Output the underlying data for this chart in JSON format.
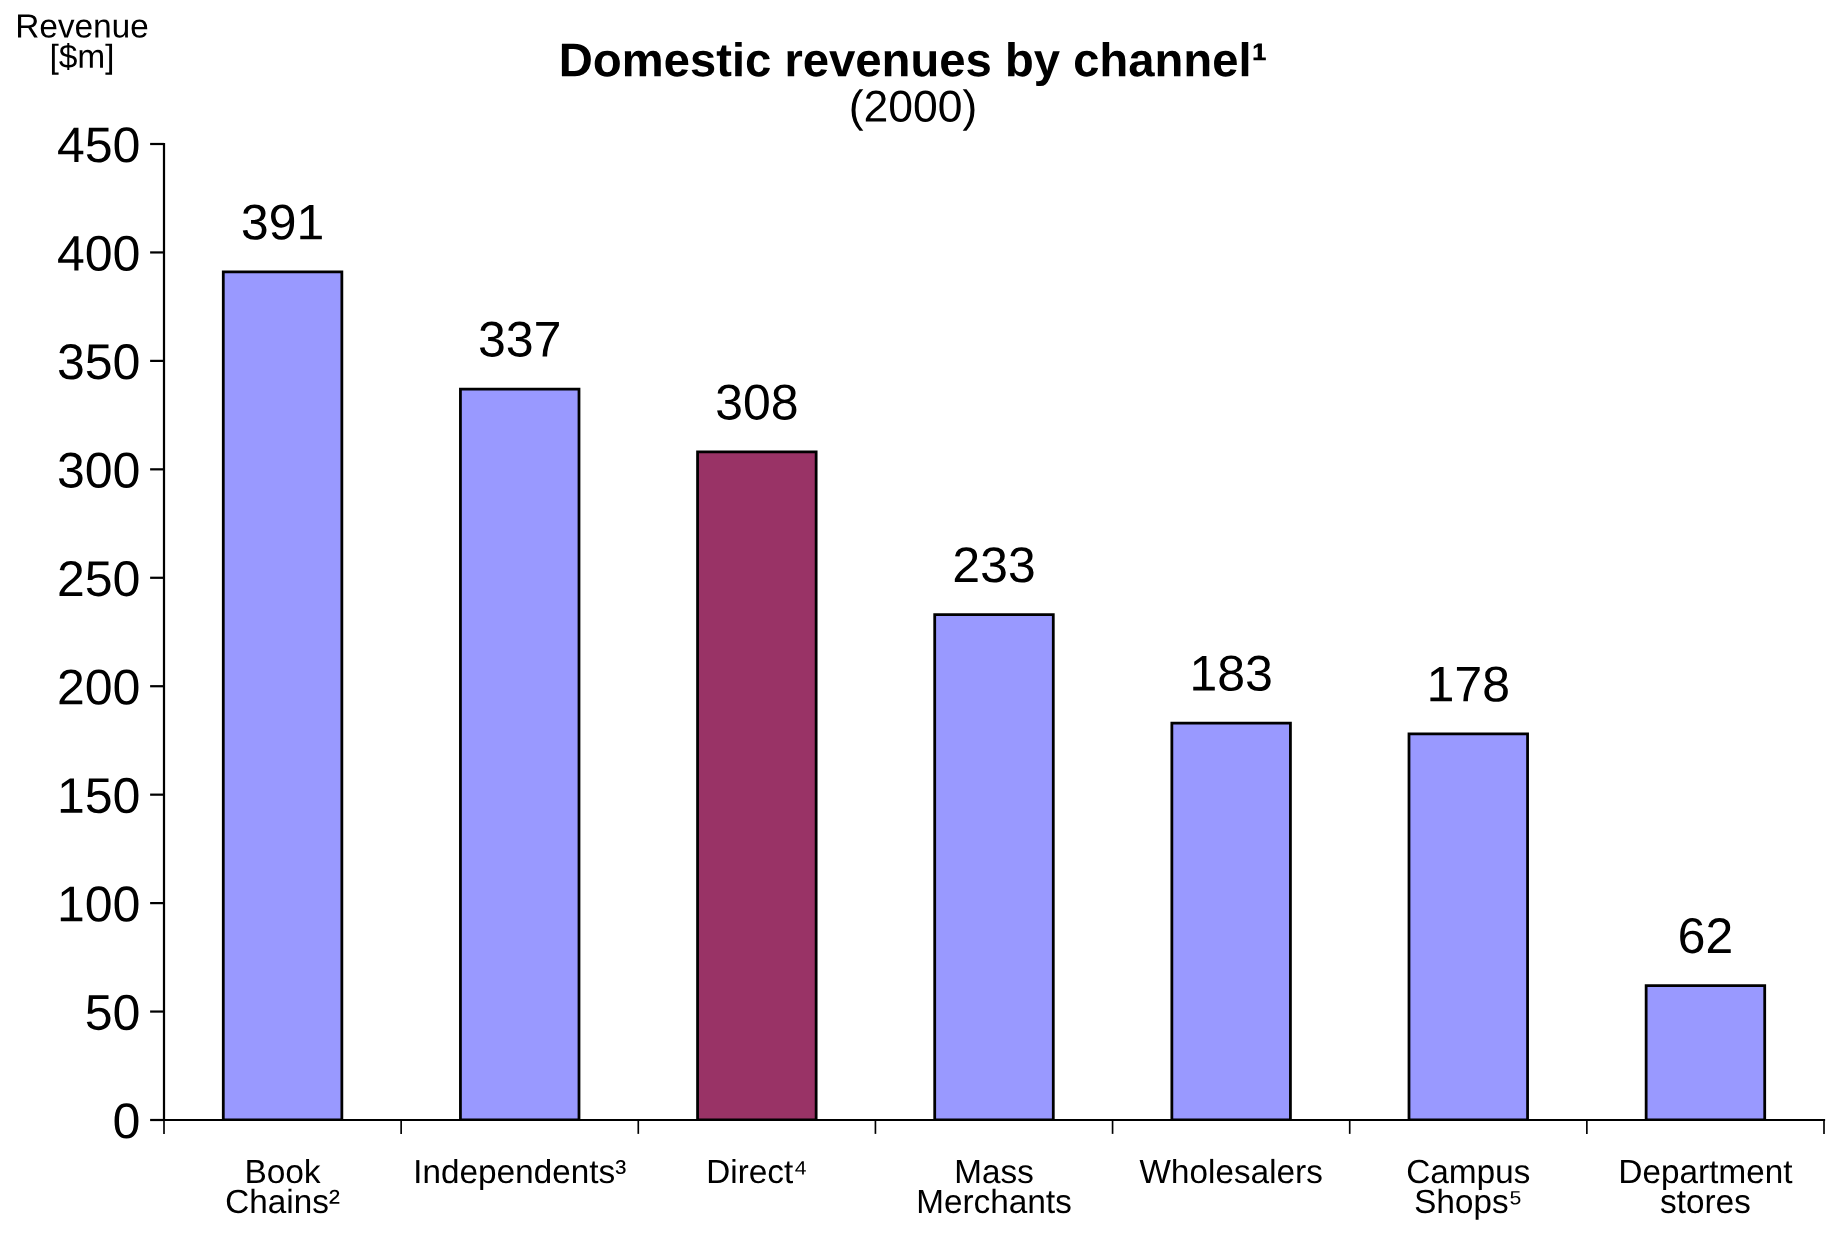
{
  "chart_data": {
    "type": "bar",
    "title": "Domestic revenues by channel¹",
    "subtitle": "(2000)",
    "ylabel": "Revenue\n[$m]",
    "categories": [
      "Book\nChains²",
      "Independents³",
      "Direct⁴",
      "Mass\nMerchants",
      "Wholesalers",
      "Campus\nShops⁵",
      "Department\nstores"
    ],
    "values": [
      391,
      337,
      308,
      233,
      183,
      178,
      62
    ],
    "colors": [
      "#9999ff",
      "#9999ff",
      "#993366",
      "#9999ff",
      "#9999ff",
      "#9999ff",
      "#9999ff"
    ],
    "ylim": [
      0,
      450
    ],
    "yticks": [
      0,
      50,
      100,
      150,
      200,
      250,
      300,
      350,
      400,
      450
    ],
    "data_labels": true,
    "grid": false
  }
}
